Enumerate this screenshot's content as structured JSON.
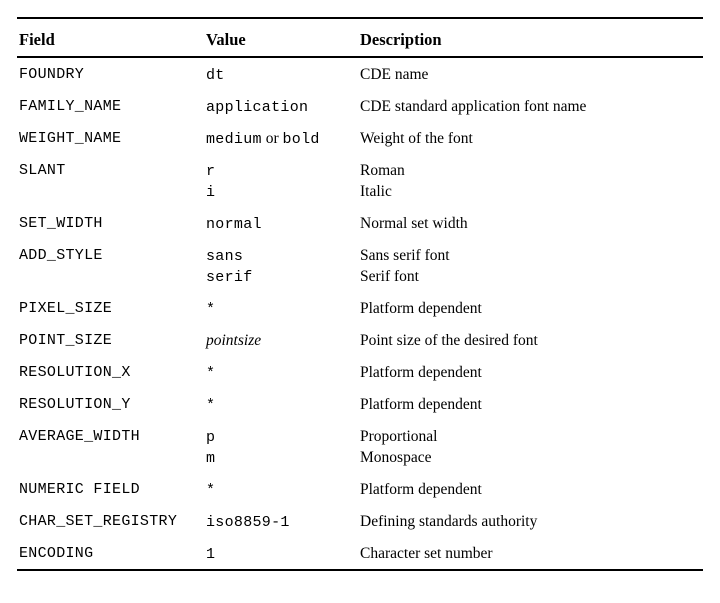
{
  "colors": {
    "background": "#ffffff",
    "text": "#000000",
    "rule": "#000000"
  },
  "table": {
    "headers": {
      "field": "Field",
      "value": "Value",
      "description": "Description"
    },
    "rows": [
      {
        "field": "FOUNDRY",
        "value_lines": [
          [
            {
              "t": "dt",
              "s": "mono"
            }
          ]
        ],
        "desc_lines": [
          "CDE name"
        ]
      },
      {
        "field": "FAMILY_NAME",
        "value_lines": [
          [
            {
              "t": "application",
              "s": "mono"
            }
          ]
        ],
        "desc_lines": [
          "CDE standard application font name"
        ]
      },
      {
        "field": "WEIGHT_NAME",
        "value_lines": [
          [
            {
              "t": "medium",
              "s": "mono"
            },
            {
              "t": " or ",
              "s": "serif"
            },
            {
              "t": "bold",
              "s": "mono"
            }
          ]
        ],
        "desc_lines": [
          "Weight of the font"
        ]
      },
      {
        "field": "SLANT",
        "value_lines": [
          [
            {
              "t": "r",
              "s": "mono"
            }
          ],
          [
            {
              "t": "i",
              "s": "mono"
            }
          ]
        ],
        "desc_lines": [
          "Roman",
          "Italic"
        ]
      },
      {
        "field": "SET_WIDTH",
        "value_lines": [
          [
            {
              "t": "normal",
              "s": "mono"
            }
          ]
        ],
        "desc_lines": [
          "Normal set width"
        ]
      },
      {
        "field": "ADD_STYLE",
        "value_lines": [
          [
            {
              "t": "sans",
              "s": "mono"
            }
          ],
          [
            {
              "t": "serif",
              "s": "mono"
            }
          ]
        ],
        "desc_lines": [
          "Sans serif font",
          "Serif font"
        ]
      },
      {
        "field": "PIXEL_SIZE",
        "value_lines": [
          [
            {
              "t": "*",
              "s": "mono"
            }
          ]
        ],
        "desc_lines": [
          "Platform dependent"
        ]
      },
      {
        "field": "POINT_SIZE",
        "value_lines": [
          [
            {
              "t": "pointsize",
              "s": "italic"
            }
          ]
        ],
        "desc_lines": [
          "Point size of the desired font"
        ]
      },
      {
        "field": "RESOLUTION_X",
        "value_lines": [
          [
            {
              "t": "*",
              "s": "mono"
            }
          ]
        ],
        "desc_lines": [
          "Platform dependent"
        ]
      },
      {
        "field": "RESOLUTION_Y",
        "value_lines": [
          [
            {
              "t": "*",
              "s": "mono"
            }
          ]
        ],
        "desc_lines": [
          "Platform dependent"
        ]
      },
      {
        "field": "AVERAGE_WIDTH",
        "value_lines": [
          [
            {
              "t": "p",
              "s": "mono"
            }
          ],
          [
            {
              "t": "m",
              "s": "mono"
            }
          ]
        ],
        "desc_lines": [
          "Proportional",
          "Monospace"
        ]
      },
      {
        "field": "NUMERIC FIELD",
        "value_lines": [
          [
            {
              "t": "*",
              "s": "mono"
            }
          ]
        ],
        "desc_lines": [
          "Platform dependent"
        ]
      },
      {
        "field": "CHAR_SET_REGISTRY",
        "value_lines": [
          [
            {
              "t": "iso8859-1",
              "s": "mono"
            }
          ]
        ],
        "desc_lines": [
          "Defining standards authority"
        ]
      },
      {
        "field": "ENCODING",
        "value_lines": [
          [
            {
              "t": "1",
              "s": "mono"
            }
          ]
        ],
        "desc_lines": [
          "Character set number"
        ]
      }
    ]
  }
}
